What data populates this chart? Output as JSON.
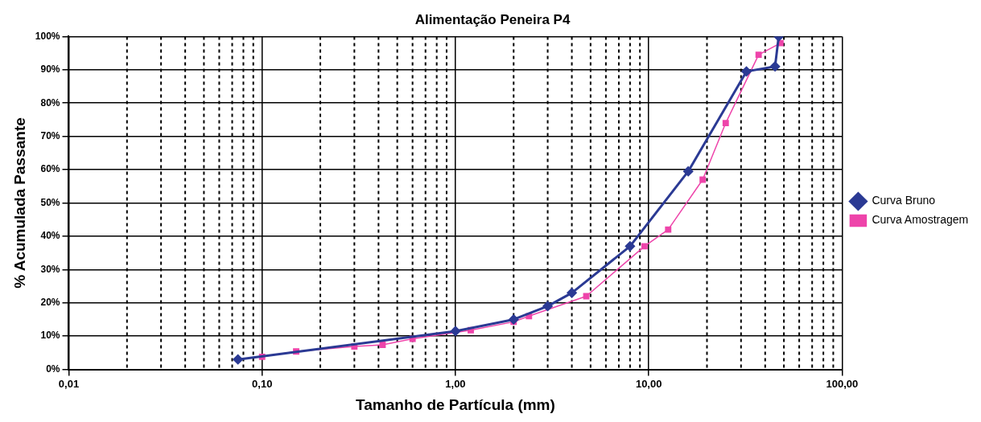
{
  "chart_data": {
    "type": "line",
    "title": "Alimentação Peneira P4",
    "xlabel": "Tamanho de Partícula (mm)",
    "ylabel": "% Acumulada Passante",
    "log": "x",
    "grid": true,
    "legend": "right",
    "xlim": [
      0.01,
      100
    ],
    "xticks": [
      {
        "value": 0.01,
        "label": "0,01"
      },
      {
        "value": 0.02,
        "label": null
      },
      {
        "value": 0.03,
        "label": null
      },
      {
        "value": 0.04,
        "label": null
      },
      {
        "value": 0.05,
        "label": null
      },
      {
        "value": 0.06,
        "label": null
      },
      {
        "value": 0.07,
        "label": null
      },
      {
        "value": 0.08,
        "label": null
      },
      {
        "value": 0.09,
        "label": null
      },
      {
        "value": 0.1,
        "label": "0,10"
      },
      {
        "value": 0.2,
        "label": null
      },
      {
        "value": 0.3,
        "label": null
      },
      {
        "value": 0.4,
        "label": null
      },
      {
        "value": 0.5,
        "label": null
      },
      {
        "value": 0.6,
        "label": null
      },
      {
        "value": 0.7,
        "label": null
      },
      {
        "value": 0.8,
        "label": null
      },
      {
        "value": 0.9,
        "label": null
      },
      {
        "value": 1,
        "label": "1,00"
      },
      {
        "value": 2,
        "label": null
      },
      {
        "value": 3,
        "label": null
      },
      {
        "value": 4,
        "label": null
      },
      {
        "value": 5,
        "label": null
      },
      {
        "value": 6,
        "label": null
      },
      {
        "value": 7,
        "label": null
      },
      {
        "value": 8,
        "label": null
      },
      {
        "value": 9,
        "label": null
      },
      {
        "value": 10,
        "label": "10,00"
      },
      {
        "value": 20,
        "label": null
      },
      {
        "value": 30,
        "label": null
      },
      {
        "value": 40,
        "label": null
      },
      {
        "value": 50,
        "label": null
      },
      {
        "value": 60,
        "label": null
      },
      {
        "value": 70,
        "label": null
      },
      {
        "value": 80,
        "label": null
      },
      {
        "value": 90,
        "label": null
      },
      {
        "value": 100,
        "label": "100,00"
      }
    ],
    "ylim": [
      0,
      100
    ],
    "yticks": [
      {
        "value": 0,
        "label": "0%"
      },
      {
        "value": 10,
        "label": "10%"
      },
      {
        "value": 20,
        "label": "20%"
      },
      {
        "value": 30,
        "label": "30%"
      },
      {
        "value": 40,
        "label": "40%"
      },
      {
        "value": 50,
        "label": "50%"
      },
      {
        "value": 60,
        "label": "60%"
      },
      {
        "value": 70,
        "label": "70%"
      },
      {
        "value": 80,
        "label": "80%"
      },
      {
        "value": 90,
        "label": "90%"
      },
      {
        "value": 100,
        "label": "100%"
      }
    ],
    "series": [
      {
        "name": "Curva Bruno",
        "color": "#2b3a94",
        "marker": "diamond",
        "x": [
          0.075,
          1.0,
          2.0,
          3.0,
          4.0,
          8.0,
          16,
          32,
          45,
          47
        ],
        "values": [
          3,
          11.5,
          15,
          19,
          23,
          37,
          59.5,
          89.5,
          91,
          100
        ]
      },
      {
        "name": "Curva Amostragem",
        "color": "#ee44aa",
        "marker": "square",
        "x": [
          0.1,
          0.15,
          0.3,
          0.42,
          0.6,
          1.2,
          2.0,
          2.4,
          4.75,
          9.5,
          12.6,
          19,
          25,
          37,
          48
        ],
        "values": [
          3.8,
          5.4,
          6.9,
          7.4,
          9.2,
          11.8,
          14.3,
          16,
          22,
          37,
          42,
          57,
          74,
          94.5,
          98
        ]
      }
    ]
  }
}
